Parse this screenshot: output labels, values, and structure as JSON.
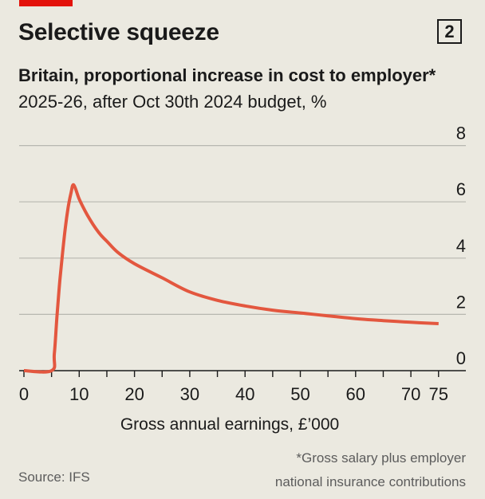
{
  "header": {
    "title": "Selective squeeze",
    "chart_number": "2",
    "subtitle": "Britain, proportional increase in cost to employer*",
    "subtitle2": "2025-26, after Oct 30th 2024 budget, %"
  },
  "footer": {
    "footnote_line1": "*Gross salary plus employer",
    "footnote_line2": "national insurance contributions",
    "source": "Source: IFS"
  },
  "colors": {
    "line": "#e3573f",
    "accent": "#e3120b",
    "grid": "#b7b7b0",
    "axis": "#1a1a1a"
  },
  "chart_data": {
    "type": "line",
    "title": "Selective squeeze",
    "xlabel": "Gross annual earnings, £’000",
    "ylabel": "",
    "xlim": [
      0,
      77
    ],
    "ylim": [
      0,
      8
    ],
    "x_ticks": [
      0,
      10,
      20,
      30,
      40,
      50,
      60,
      70,
      75
    ],
    "y_ticks": [
      0,
      2,
      4,
      6,
      8
    ],
    "grid": true,
    "series": [
      {
        "x": [
          0,
          5,
          5.5,
          6,
          6.5,
          7,
          7.5,
          8,
          8.5,
          9,
          10,
          11,
          12,
          13,
          14,
          15,
          17,
          20,
          25,
          30,
          35,
          40,
          45,
          50,
          55,
          60,
          65,
          70,
          75
        ],
        "values": [
          0,
          0,
          0.6,
          2.0,
          3.2,
          4.2,
          5.1,
          5.8,
          6.3,
          6.6,
          6.1,
          5.7,
          5.35,
          5.05,
          4.8,
          4.6,
          4.2,
          3.8,
          3.3,
          2.8,
          2.5,
          2.3,
          2.15,
          2.05,
          1.95,
          1.85,
          1.78,
          1.72,
          1.67
        ]
      }
    ]
  }
}
